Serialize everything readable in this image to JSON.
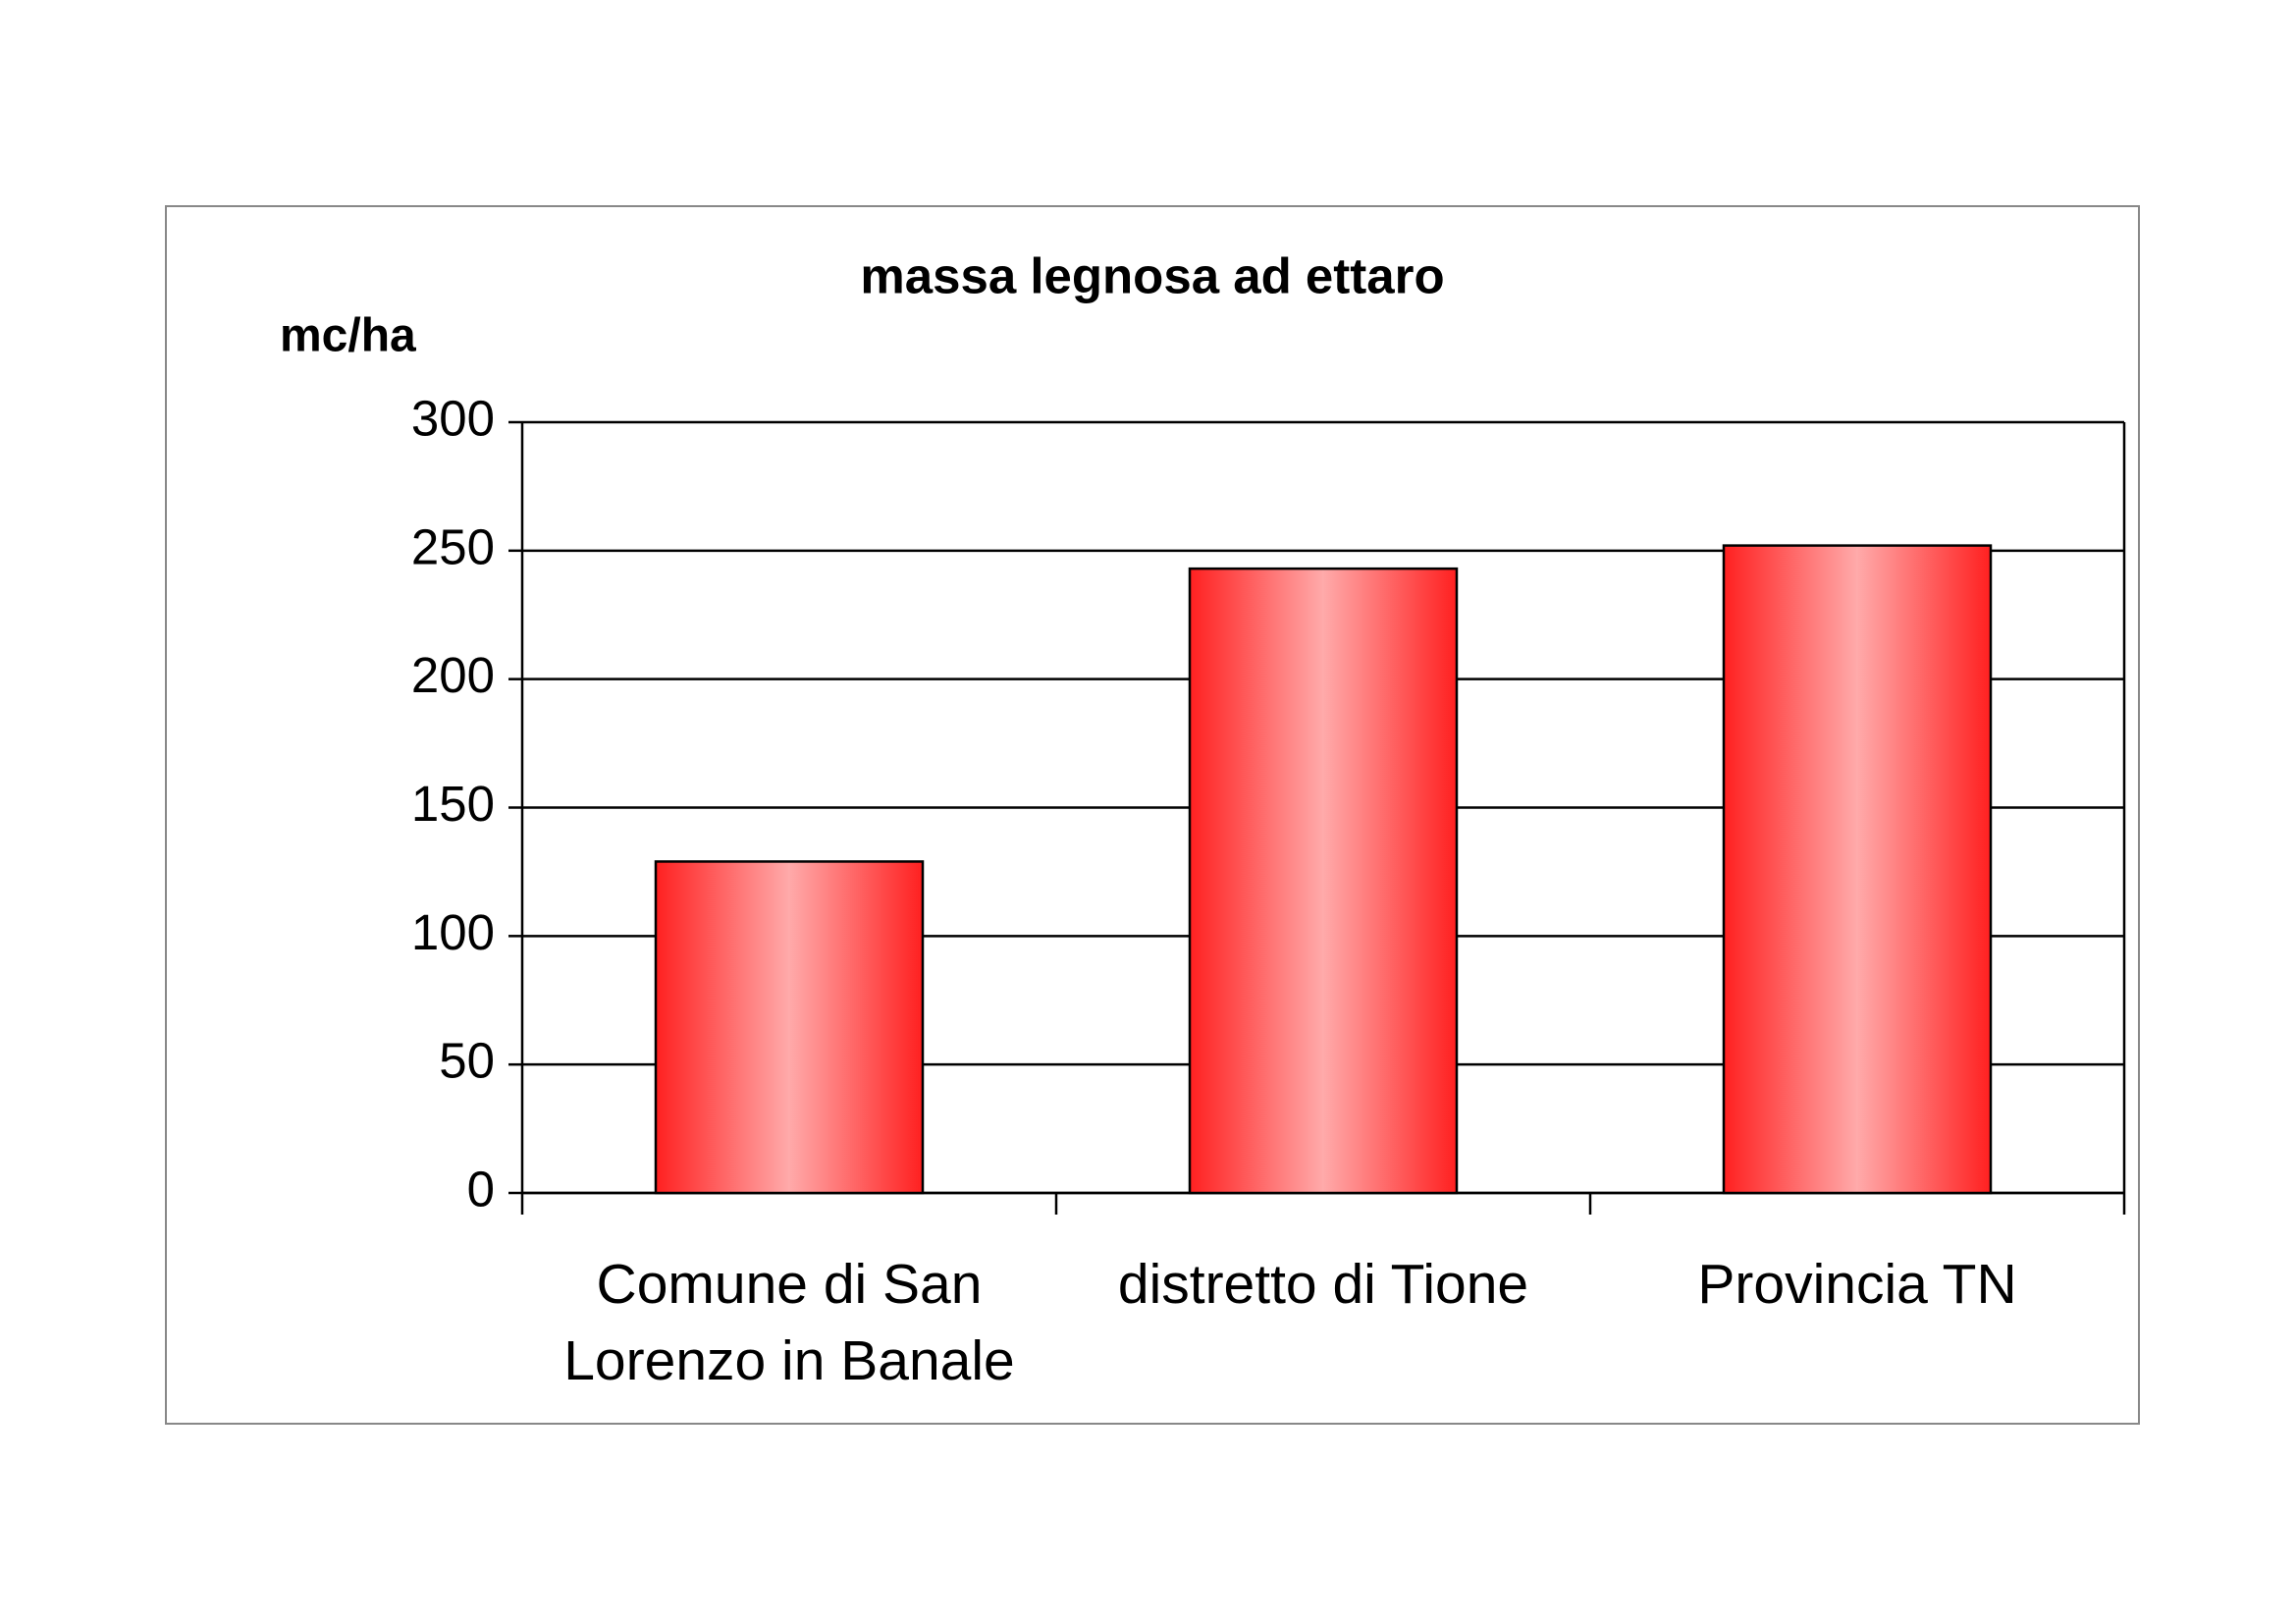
{
  "chart_data": {
    "type": "bar",
    "title": "massa legnosa ad ettaro",
    "y_label": "mc/ha",
    "categories": [
      "Comune di San Lorenzo in Banale",
      "distretto di Tione",
      "Provincia TN"
    ],
    "values": [
      129,
      243,
      252
    ],
    "color": "#ff2020",
    "ylim": [
      0,
      300
    ],
    "yticks": [
      0,
      50,
      100,
      150,
      200,
      250,
      300
    ],
    "grid": true
  }
}
